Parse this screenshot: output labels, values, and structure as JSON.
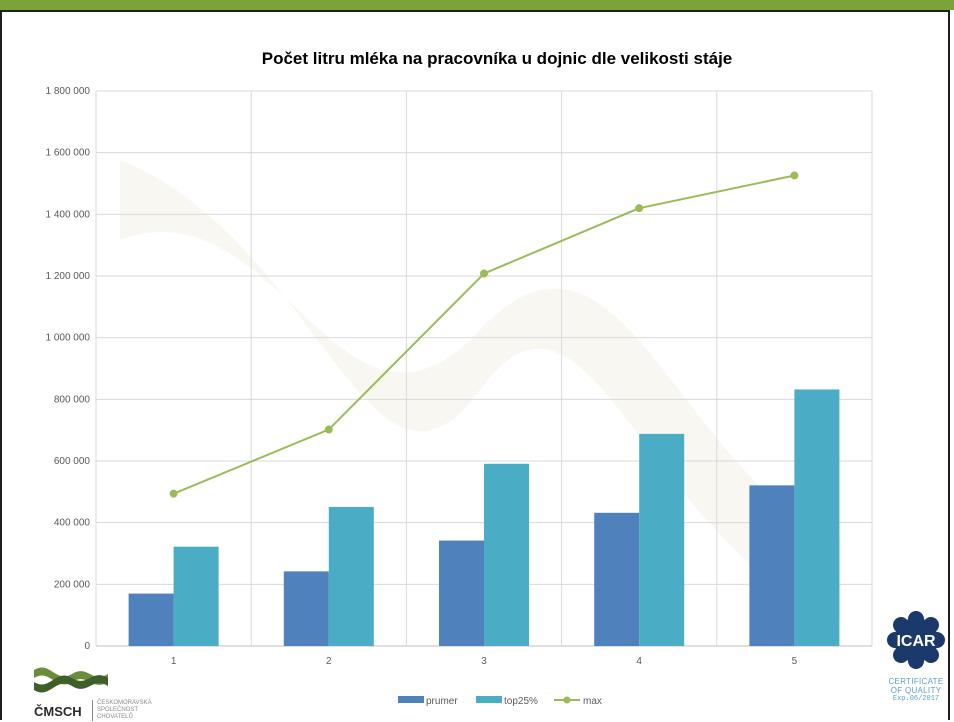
{
  "chart_data": {
    "type": "bar",
    "title": "Počet litru mléka na pracovníka u dojnic dle velikosti stáje",
    "categories": [
      "1",
      "2",
      "3",
      "4",
      "5"
    ],
    "series": [
      {
        "name": "prumer",
        "type": "bar",
        "color": "#4f81bd",
        "values": [
          170000,
          242000,
          342000,
          432000,
          521000
        ]
      },
      {
        "name": "top25%",
        "type": "bar",
        "color": "#4bacc6",
        "values": [
          322000,
          451000,
          591000,
          688000,
          832000
        ]
      },
      {
        "name": "max",
        "type": "line",
        "color": "#9bbb59",
        "values": [
          494000,
          702000,
          1208000,
          1420000,
          1526000
        ]
      }
    ],
    "ylim": [
      0,
      1800000
    ],
    "yticks": [
      0,
      200000,
      400000,
      600000,
      800000,
      1000000,
      1200000,
      1400000,
      1600000,
      1800000
    ],
    "ytick_labels": [
      "0",
      "200 000",
      "400 000",
      "600 000",
      "800 000",
      "1 000 000",
      "1 200 000",
      "1 400 000",
      "1 600 000",
      "1 800 000"
    ],
    "grid": true,
    "legend_position": "bottom",
    "xlabel": "",
    "ylabel": ""
  },
  "logos": {
    "left_name": "ČMSCH",
    "left_sub": [
      "ČESKOMORAVSKÁ",
      "SPOLEČNOST",
      "CHOVATELŮ"
    ],
    "right_name": "ICAR",
    "right_line1": "CERTIFICATE",
    "right_line2": "OF QUALITY",
    "right_line3": "Exp.06/2017"
  }
}
